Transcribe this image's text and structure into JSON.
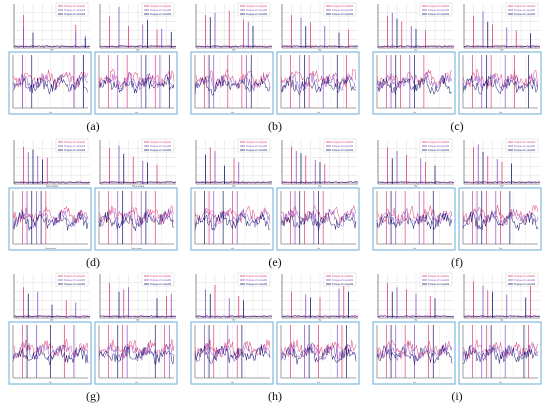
{
  "captions": [
    "(a)",
    "(b)",
    "(c)",
    "(d)",
    "(e)",
    "(f)",
    "(g)",
    "(h)",
    "(i)"
  ],
  "legend": [
    "Torque of motor#1",
    "Torque of motor#2",
    "Torque of motor#3"
  ],
  "colors": {
    "series": [
      "#e0407a",
      "#8a50c8",
      "#1a1a6e"
    ],
    "grid": "#d6d6d6",
    "axis": "#444444",
    "inset_border": "#5aa6d6"
  },
  "chart_data": [
    {
      "type": "line",
      "caption": "(a)",
      "xlabel": "Hz",
      "panels": [
        {
          "ymax": 80,
          "series": [
            {
              "x": [
                1,
                6.5
              ],
              "values": [
                60,
                42
              ]
            },
            {
              "x": [
                1,
                6.5,
                7.5
              ],
              "values": [
                38,
                28,
                22
              ]
            },
            {
              "x": [
                2,
                7.5
              ],
              "values": [
                28,
                18
              ]
            }
          ]
        },
        {
          "ymax": 600,
          "series": [
            {
              "x": [
                1,
                3,
                6
              ],
              "values": [
                430,
                300,
                250
              ]
            },
            {
              "x": [
                2,
                4.5,
                6.5
              ],
              "values": [
                560,
                320,
                260
              ]
            },
            {
              "x": [
                5,
                7.5
              ],
              "values": [
                380,
                220
              ]
            }
          ]
        }
      ]
    },
    {
      "type": "line",
      "caption": "(b)",
      "xlabel": "Hz",
      "panels": [
        {
          "ymax": 400,
          "series": [
            {
              "x": [
                1,
                3.5,
                5
              ],
              "values": [
                300,
                340,
                260
              ]
            },
            {
              "x": [
                2,
                5.5
              ],
              "values": [
                320,
                240
              ]
            },
            {
              "x": [
                1.5,
                6
              ],
              "values": [
                280,
                200
              ]
            }
          ]
        },
        {
          "ymax": 1200,
          "series": [
            {
              "x": [
                1,
                3,
                7
              ],
              "values": [
                900,
                700,
                500
              ]
            },
            {
              "x": [
                2,
                4.5
              ],
              "values": [
                820,
                600
              ]
            },
            {
              "x": [
                2.5,
                6
              ],
              "values": [
                600,
                420
              ]
            }
          ]
        }
      ]
    },
    {
      "type": "line",
      "caption": "(c)",
      "xlabel": "Hz",
      "panels": [
        {
          "ymax": 300,
          "series": [
            {
              "x": [
                1,
                2.5,
                5
              ],
              "values": [
                220,
                180,
                120
              ]
            },
            {
              "x": [
                1.5,
                3.5
              ],
              "values": [
                240,
                150
              ]
            },
            {
              "x": [
                2,
                4
              ],
              "values": [
                200,
                130
              ]
            }
          ]
        },
        {
          "ymax": 1500,
          "series": [
            {
              "x": [
                1,
                3,
                5.5
              ],
              "values": [
                1100,
                800,
                600
              ]
            },
            {
              "x": [
                2,
                4.5
              ],
              "values": [
                1250,
                700
              ]
            },
            {
              "x": [
                2.5,
                7
              ],
              "values": [
                900,
                500
              ]
            }
          ]
        }
      ]
    },
    {
      "type": "line",
      "caption": "(d)",
      "xlabel": "Time series",
      "panels": [
        {
          "ymax": 5000,
          "series": [
            {
              "x": [
                1,
                3.5
              ],
              "values": [
                4200,
                3000
              ]
            },
            {
              "x": [
                1.5,
                2.5
              ],
              "values": [
                3600,
                3200
              ]
            },
            {
              "x": [
                2,
                3
              ],
              "values": [
                3900,
                2800
              ]
            }
          ]
        },
        {
          "ymax": 8000,
          "series": [
            {
              "x": [
                1,
                3.5,
                6
              ],
              "values": [
                6500,
                5000,
                3500
              ]
            },
            {
              "x": [
                2,
                4.5
              ],
              "values": [
                7000,
                4200
              ]
            },
            {
              "x": [
                2.5,
                5
              ],
              "values": [
                5500,
                3900
              ]
            }
          ]
        }
      ]
    },
    {
      "type": "line",
      "caption": "(e)",
      "xlabel": "Hz",
      "panels": [
        {
          "ymax": 1200,
          "series": [
            {
              "x": [
                1.5,
                4
              ],
              "values": [
                1000,
                700
              ]
            },
            {
              "x": [
                2,
                4.5
              ],
              "values": [
                900,
                600
              ]
            },
            {
              "x": [
                1,
                3
              ],
              "values": [
                800,
                500
              ]
            }
          ]
        },
        {
          "ymax": 4000,
          "series": [
            {
              "x": [
                1,
                2.5,
                4.5
              ],
              "values": [
                3400,
                2600,
                1800
              ]
            },
            {
              "x": [
                1.5,
                3.5
              ],
              "values": [
                3000,
                2200
              ]
            },
            {
              "x": [
                2,
                4
              ],
              "values": [
                2800,
                2000
              ]
            }
          ]
        }
      ]
    },
    {
      "type": "line",
      "caption": "(f)",
      "xlabel": "Hz",
      "panels": [
        {
          "ymax": 1200,
          "series": [
            {
              "x": [
                1,
                3,
                5
              ],
              "values": [
                1000,
                800,
                600
              ]
            },
            {
              "x": [
                2,
                4.5
              ],
              "values": [
                900,
                700
              ]
            },
            {
              "x": [
                1.5,
                6
              ],
              "values": [
                700,
                500
              ]
            }
          ]
        },
        {
          "ymax": 3000,
          "series": [
            {
              "x": [
                1,
                2.5,
                4
              ],
              "values": [
                2500,
                1900,
                1500
              ]
            },
            {
              "x": [
                1.5,
                3.5
              ],
              "values": [
                2700,
                1700
              ]
            },
            {
              "x": [
                2,
                5
              ],
              "values": [
                2200,
                1400
              ]
            }
          ]
        }
      ]
    },
    {
      "type": "line",
      "caption": "(g)",
      "xlabel": "Hz",
      "panels": [
        {
          "ymax": 100,
          "series": [
            {
              "x": [
                1,
                5.5
              ],
              "values": [
                70,
                40
              ]
            },
            {
              "x": [
                2.5,
                6.5
              ],
              "values": [
                60,
                35
              ]
            },
            {
              "x": [
                1.5,
                4
              ],
              "values": [
                55,
                30
              ]
            }
          ]
        },
        {
          "ymax": 2000,
          "series": [
            {
              "x": [
                1,
                2.5,
                7
              ],
              "values": [
                1600,
                1300,
                1000
              ]
            },
            {
              "x": [
                3,
                7.5
              ],
              "values": [
                1400,
                1100
              ]
            },
            {
              "x": [
                2,
                6
              ],
              "values": [
                1200,
                900
              ]
            }
          ]
        }
      ]
    },
    {
      "type": "line",
      "caption": "(h)",
      "xlabel": "Hz",
      "panels": [
        {
          "ymax": 400,
          "series": [
            {
              "x": [
                2,
                4.5
              ],
              "values": [
                300,
                200
              ]
            },
            {
              "x": [
                1,
                3.5
              ],
              "values": [
                260,
                180
              ]
            },
            {
              "x": [
                1.5,
                5
              ],
              "values": [
                220,
                160
              ]
            }
          ]
        },
        {
          "ymax": 1500,
          "series": [
            {
              "x": [
                1,
                4,
                6.5
              ],
              "values": [
                900,
                700,
                1100
              ]
            },
            {
              "x": [
                2.5,
                6
              ],
              "values": [
                800,
                1000
              ]
            },
            {
              "x": [
                3,
                7
              ],
              "values": [
                700,
                900
              ]
            }
          ]
        }
      ]
    },
    {
      "type": "line",
      "caption": "(i)",
      "xlabel": "Hz",
      "panels": [
        {
          "ymax": 400,
          "series": [
            {
              "x": [
                1,
                3,
                5.5
              ],
              "values": [
                320,
                260,
                200
              ]
            },
            {
              "x": [
                2,
                4
              ],
              "values": [
                280,
                220
              ]
            },
            {
              "x": [
                1.5,
                6
              ],
              "values": [
                240,
                180
              ]
            }
          ]
        },
        {
          "ymax": 3000,
          "series": [
            {
              "x": [
                1,
                2.5,
                7
              ],
              "values": [
                2500,
                1900,
                2300
              ]
            },
            {
              "x": [
                2,
                4.5
              ],
              "values": [
                2200,
                1600
              ]
            },
            {
              "x": [
                3,
                6.5
              ],
              "values": [
                1800,
                1400
              ]
            }
          ]
        }
      ]
    }
  ]
}
